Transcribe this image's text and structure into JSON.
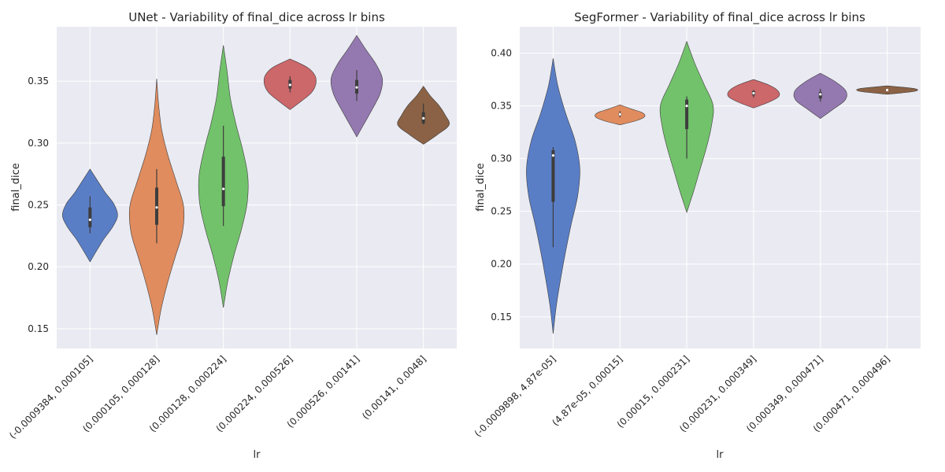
{
  "chart_data": [
    {
      "type": "violin",
      "title": "UNet - Variability of final_dice across lr bins",
      "xlabel": "lr",
      "ylabel": "final_dice",
      "ylim": [
        0.134,
        0.394
      ],
      "yticks": [
        "0.15",
        "0.20",
        "0.25",
        "0.30",
        "0.35"
      ],
      "grid": true,
      "categories": [
        "(-0.0009384, 0.000105]",
        "(0.000105, 0.000128]",
        "(0.000128, 0.000224]",
        "(0.000224, 0.000526]",
        "(0.000526, 0.00141]",
        "(0.00141, 0.0048]"
      ],
      "colors": [
        "#5a7ec6",
        "#e08c5e",
        "#72c26b",
        "#cc676a",
        "#9479b0",
        "#8b6245"
      ],
      "violins": [
        {
          "min": 0.204,
          "max": 0.279,
          "widths": [
            0.05,
            0.22,
            0.45,
            0.72,
            0.88,
            0.76,
            0.48,
            0.24,
            0.08
          ]
        },
        {
          "min": 0.145,
          "max": 0.352,
          "widths": [
            0.02,
            0.14,
            0.34,
            0.58,
            0.82,
            0.86,
            0.62,
            0.36,
            0.16,
            0.06,
            0.02
          ]
        },
        {
          "min": 0.167,
          "max": 0.379,
          "widths": [
            0.02,
            0.14,
            0.34,
            0.58,
            0.76,
            0.78,
            0.62,
            0.4,
            0.22,
            0.12,
            0.04
          ]
        },
        {
          "min": 0.327,
          "max": 0.368,
          "widths": [
            0.08,
            0.36,
            0.68,
            0.82,
            0.8,
            0.55,
            0.18
          ]
        },
        {
          "min": 0.305,
          "max": 0.387,
          "widths": [
            0.05,
            0.26,
            0.52,
            0.75,
            0.82,
            0.62,
            0.3,
            0.08
          ]
        },
        {
          "min": 0.299,
          "max": 0.346,
          "widths": [
            0.06,
            0.45,
            0.82,
            0.7,
            0.5,
            0.22,
            0.05
          ]
        }
      ],
      "box": [
        {
          "q1": 0.232,
          "median": 0.238,
          "q3": 0.248,
          "whisker_low": 0.227,
          "whisker_high": 0.257
        },
        {
          "q1": 0.234,
          "median": 0.248,
          "q3": 0.264,
          "whisker_low": 0.219,
          "whisker_high": 0.279
        },
        {
          "q1": 0.249,
          "median": 0.263,
          "q3": 0.289,
          "whisker_low": 0.233,
          "whisker_high": 0.314
        },
        {
          "q1": 0.344,
          "median": 0.347,
          "q3": 0.351,
          "whisker_low": 0.341,
          "whisker_high": 0.354
        },
        {
          "q1": 0.34,
          "median": 0.345,
          "q3": 0.351,
          "whisker_low": 0.334,
          "whisker_high": 0.359
        },
        {
          "q1": 0.316,
          "median": 0.32,
          "q3": 0.325,
          "whisker_low": 0.315,
          "whisker_high": 0.332
        }
      ]
    },
    {
      "type": "violin",
      "title": "SegFormer - Variability of final_dice across lr bins",
      "xlabel": "lr",
      "ylabel": "final_dice",
      "ylim": [
        0.12,
        0.425
      ],
      "yticks": [
        "0.15",
        "0.20",
        "0.25",
        "0.30",
        "0.35",
        "0.40"
      ],
      "grid": true,
      "categories": [
        "(-0.0009898, 4.87e-05]",
        "(4.87e-05, 0.00015]",
        "(0.00015, 0.000231]",
        "(0.000231, 0.000349]",
        "(0.000349, 0.000471]",
        "(0.000471, 0.000496]"
      ],
      "colors": [
        "#5a7ec6",
        "#e08c5e",
        "#72c26b",
        "#cc676a",
        "#9479b0",
        "#8b6245"
      ],
      "violins": [
        {
          "min": 0.134,
          "max": 0.395,
          "widths": [
            0.01,
            0.1,
            0.24,
            0.4,
            0.58,
            0.78,
            0.85,
            0.7,
            0.4,
            0.15,
            0.02
          ]
        },
        {
          "min": 0.332,
          "max": 0.351,
          "widths": [
            0.1,
            0.5,
            0.78,
            0.72,
            0.35,
            0.08
          ]
        },
        {
          "min": 0.249,
          "max": 0.411,
          "widths": [
            0.05,
            0.22,
            0.42,
            0.62,
            0.78,
            0.84,
            0.55,
            0.25,
            0.05
          ]
        },
        {
          "min": 0.348,
          "max": 0.375,
          "widths": [
            0.1,
            0.48,
            0.8,
            0.78,
            0.5,
            0.12
          ]
        },
        {
          "min": 0.338,
          "max": 0.381,
          "widths": [
            0.06,
            0.4,
            0.78,
            0.82,
            0.5,
            0.12
          ]
        },
        {
          "min": 0.361,
          "max": 0.369,
          "widths": [
            0.2,
            0.85,
            0.88,
            0.35
          ]
        }
      ],
      "box": [
        {
          "q1": 0.259,
          "median": 0.303,
          "q3": 0.308,
          "whisker_low": 0.216,
          "whisker_high": 0.311
        },
        {
          "q1": 0.341,
          "median": 0.342,
          "q3": 0.343,
          "whisker_low": 0.339,
          "whisker_high": 0.345
        },
        {
          "q1": 0.328,
          "median": 0.35,
          "q3": 0.356,
          "whisker_low": 0.3,
          "whisker_high": 0.359
        },
        {
          "q1": 0.36,
          "median": 0.362,
          "q3": 0.364,
          "whisker_low": 0.358,
          "whisker_high": 0.365
        },
        {
          "q1": 0.357,
          "median": 0.361,
          "q3": 0.363,
          "whisker_low": 0.354,
          "whisker_high": 0.366
        },
        {
          "q1": 0.3645,
          "median": 0.365,
          "q3": 0.3655,
          "whisker_low": 0.364,
          "whisker_high": 0.366
        }
      ]
    }
  ]
}
